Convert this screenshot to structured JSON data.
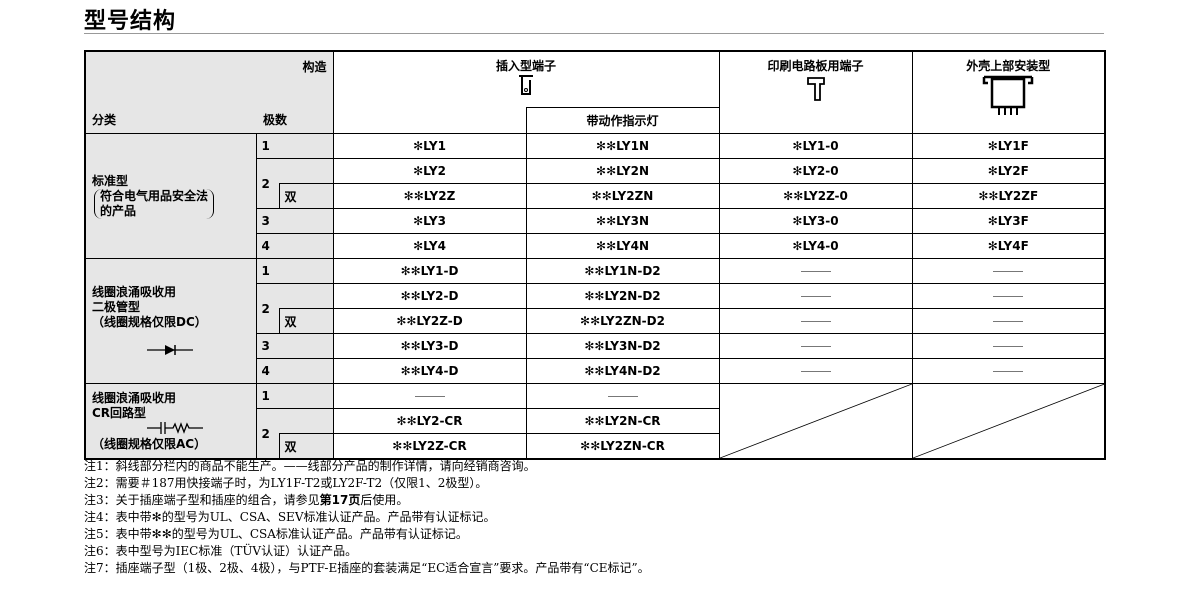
{
  "title": "型号结构",
  "header": {
    "structure": "构造",
    "category": "分类",
    "poles": "极数",
    "plugin": "插入型端子",
    "indicator": "带动作指示灯",
    "pcb": "印刷电路板用端子",
    "top_mount": "外壳上部安装型"
  },
  "groups": [
    {
      "name": "标准型",
      "sub": [
        "符合电气用品安全法",
        "的产品"
      ],
      "symbol": "",
      "rows": [
        {
          "pole": "1",
          "sub": "",
          "cells": [
            "✻LY1",
            "✻✻LY1N",
            "✻LY1-0",
            "✻LY1F"
          ]
        },
        {
          "pole": "2",
          "sub": "",
          "cells": [
            "✻LY2",
            "✻✻LY2N",
            "✻LY2-0",
            "✻LY2F"
          ]
        },
        {
          "pole": "",
          "sub": "双",
          "cells": [
            "✻✻LY2Z",
            "✻✻LY2ZN",
            "✻✻LY2Z-0",
            "✻✻LY2ZF"
          ]
        },
        {
          "pole": "3",
          "sub": "",
          "cells": [
            "✻LY3",
            "✻✻LY3N",
            "✻LY3-0",
            "✻LY3F"
          ]
        },
        {
          "pole": "4",
          "sub": "",
          "cells": [
            "✻LY4",
            "✻✻LY4N",
            "✻LY4-0",
            "✻LY4F"
          ]
        }
      ]
    },
    {
      "name": "线圈浪涌吸收用",
      "name2": "二极管型",
      "note": "（线圈规格仅限DC）",
      "symbol": "diode",
      "rows": [
        {
          "pole": "1",
          "sub": "",
          "cells": [
            "✻✻LY1-D",
            "✻✻LY1N-D2",
            "——",
            "——"
          ]
        },
        {
          "pole": "2",
          "sub": "",
          "cells": [
            "✻✻LY2-D",
            "✻✻LY2N-D2",
            "——",
            "——"
          ]
        },
        {
          "pole": "",
          "sub": "双",
          "cells": [
            "✻✻LY2Z-D",
            "✻✻LY2ZN-D2",
            "——",
            "——"
          ]
        },
        {
          "pole": "3",
          "sub": "",
          "cells": [
            "✻✻LY3-D",
            "✻✻LY3N-D2",
            "——",
            "——"
          ]
        },
        {
          "pole": "4",
          "sub": "",
          "cells": [
            "✻✻LY4-D",
            "✻✻LY4N-D2",
            "——",
            "——"
          ]
        }
      ]
    },
    {
      "name": "线圈浪涌吸收用",
      "name2": "CR回路型",
      "note": "（线圈规格仅限AC）",
      "symbol": "cr-circuit",
      "diagonal": true,
      "rows": [
        {
          "pole": "1",
          "sub": "",
          "cells": [
            "——",
            "——"
          ]
        },
        {
          "pole": "2",
          "sub": "",
          "cells": [
            "✻✻LY2-CR",
            "✻✻LY2N-CR"
          ]
        },
        {
          "pole": "",
          "sub": "双",
          "cells": [
            "✻✻LY2Z-CR",
            "✻✻LY2ZN-CR"
          ]
        }
      ]
    }
  ],
  "notes": [
    {
      "text": "注1：斜线部分栏内的商品不能生产。——线部分产品的制作详情，请向经销商咨询。"
    },
    {
      "text": "注2：需要＃187用快接端子时，为LY1F-T2或LY2F-T2（仅限1、2极型）。"
    },
    {
      "pre": "注3：关于插座端子型和插座的组合，请参见",
      "bold": "第17页",
      "post": "后使用。"
    },
    {
      "text": "注4：表中带✻的型号为UL、CSA、SEV标准认证产品。产品带有认证标记。"
    },
    {
      "text": "注5：表中带✻✻的型号为UL、CSA标准认证产品。产品带有认证标记。"
    },
    {
      "text": "注6：表中型号为IEC标准（TÜV认证）认证产品。"
    },
    {
      "text": "注7：插座端子型（1极、2极、4极），与PTF-E插座的套装满足“EC适合宣言”要求。产品带有“CE标记”。"
    }
  ]
}
